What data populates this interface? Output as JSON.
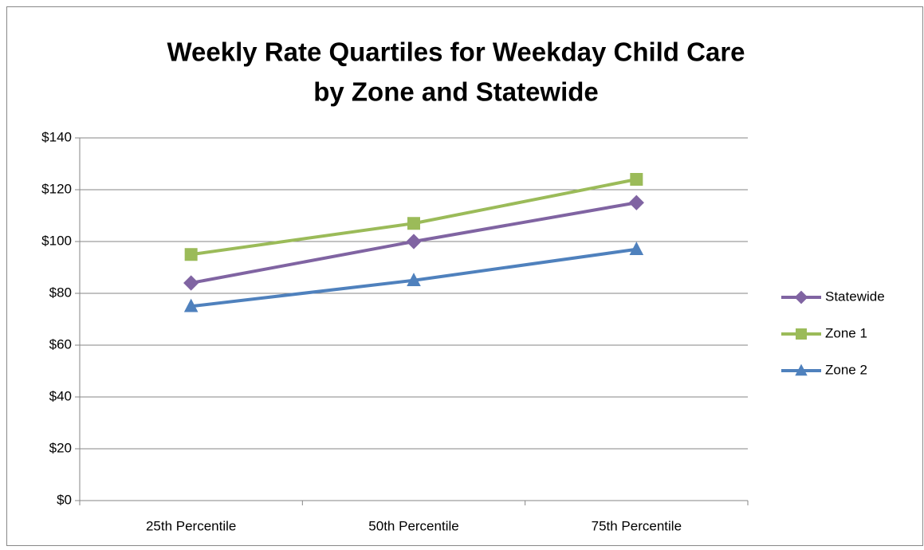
{
  "chart_data": {
    "type": "line",
    "title": [
      "Weekly Rate Quartiles for Weekday Child Care",
      "by Zone and Statewide"
    ],
    "categories": [
      "25th Percentile",
      "50th Percentile",
      "75th Percentile"
    ],
    "series": [
      {
        "name": "Statewide",
        "color": "#8064a2",
        "marker": "diamond",
        "values": [
          84,
          100,
          115
        ]
      },
      {
        "name": "Zone 1",
        "color": "#9bbb59",
        "marker": "square",
        "values": [
          95,
          107,
          124
        ]
      },
      {
        "name": "Zone 2",
        "color": "#4f81bd",
        "marker": "triangle",
        "values": [
          75,
          85,
          97
        ]
      }
    ],
    "ylim": [
      0,
      140
    ],
    "yticks": [
      {
        "value": 0,
        "label": "$0"
      },
      {
        "value": 20,
        "label": "$20"
      },
      {
        "value": 40,
        "label": "$40"
      },
      {
        "value": 60,
        "label": "$60"
      },
      {
        "value": 80,
        "label": "$80"
      },
      {
        "value": 100,
        "label": "$100"
      },
      {
        "value": 120,
        "label": "$120"
      },
      {
        "value": 140,
        "label": "$140"
      }
    ],
    "grid": true,
    "legend": "right"
  }
}
